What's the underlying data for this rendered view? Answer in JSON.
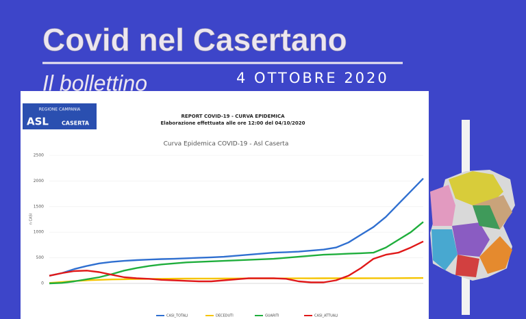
{
  "header": {
    "title": "Covid nel Casertano",
    "subtitle": "Il bollettino",
    "date": "4 OTTOBRE 2020"
  },
  "document": {
    "logo_region": "REGIONE CAMPANIA",
    "logo_main": "ASL",
    "logo_city": "CASERTA",
    "report_title": "REPORT COVID-19 - CURVA EPIDEMICA",
    "report_subtitle": "Elaborazione effettuata alle ore 12:00 del 04/10/2020"
  },
  "chart_data": {
    "type": "line",
    "title": "Curva Epidemica COVID-19 - Asl Caserta",
    "y_label": "n CASI",
    "ylim": [
      0,
      2500
    ],
    "yticks": [
      0,
      500,
      1000,
      1500,
      2000,
      2500
    ],
    "grid": true,
    "series": [
      {
        "name": "CASI_TOTALI",
        "color": "#2f6fd0",
        "values": [
          150,
          200,
          280,
          340,
          390,
          420,
          440,
          455,
          465,
          475,
          480,
          490,
          500,
          510,
          520,
          540,
          560,
          580,
          600,
          610,
          620,
          640,
          660,
          700,
          800,
          950,
          1100,
          1300,
          1550,
          1800,
          2050
        ]
      },
      {
        "name": "DECEDUTI",
        "color": "#f5c400",
        "values": [
          10,
          25,
          45,
          60,
          70,
          78,
          82,
          85,
          88,
          90,
          92,
          94,
          95,
          95,
          96,
          96,
          97,
          97,
          98,
          98,
          99,
          99,
          100,
          100,
          100,
          100,
          101,
          102,
          103,
          104,
          105
        ]
      },
      {
        "name": "GUARITI",
        "color": "#1fae3c",
        "values": [
          0,
          10,
          40,
          80,
          120,
          180,
          250,
          300,
          340,
          370,
          390,
          410,
          420,
          430,
          440,
          450,
          460,
          470,
          480,
          500,
          520,
          540,
          560,
          570,
          580,
          590,
          600,
          700,
          850,
          1000,
          1200
        ]
      },
      {
        "name": "CASI_ATTUALI",
        "color": "#e01818",
        "values": [
          150,
          200,
          240,
          250,
          220,
          170,
          120,
          100,
          90,
          70,
          60,
          50,
          40,
          40,
          60,
          80,
          100,
          100,
          100,
          90,
          40,
          20,
          20,
          60,
          150,
          300,
          480,
          560,
          600,
          700,
          820
        ]
      }
    ]
  }
}
